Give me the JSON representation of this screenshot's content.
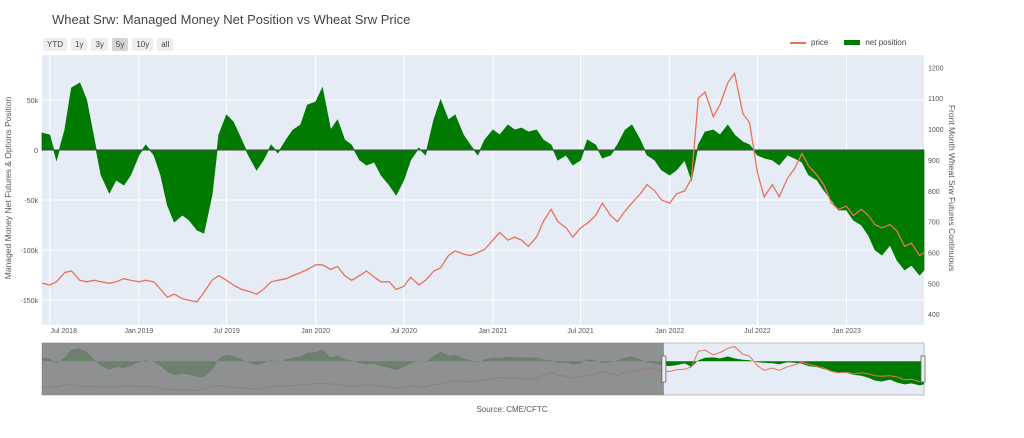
{
  "title": "Wheat Srw: Managed Money Net Position vs Wheat Srw Price",
  "range_buttons": [
    {
      "label": "YTD",
      "active": false
    },
    {
      "label": "1y",
      "active": false
    },
    {
      "label": "3y",
      "active": false
    },
    {
      "label": "5y",
      "active": true
    },
    {
      "label": "10y",
      "active": false
    },
    {
      "label": "all",
      "active": false
    }
  ],
  "legend": {
    "price": "price",
    "net": "net position"
  },
  "source": "Source: CME/CFTC",
  "colors": {
    "price": "#e8735a",
    "net": "#007a00",
    "plot_bg": "#e5ecf6",
    "grid": "#ffffff",
    "mask": "#808080"
  },
  "chart_data": {
    "type": "area",
    "title": "Wheat Srw: Managed Money Net Position vs Wheat Srw Price",
    "x_range": [
      "2018-06-15",
      "2023-06-10"
    ],
    "x_ticks": [
      "Jul 2018",
      "Jan 2019",
      "Jul 2019",
      "Jan 2020",
      "Jul 2020",
      "Jan 2021",
      "Jul 2021",
      "Jan 2022",
      "Jul 2022",
      "Jan 2023"
    ],
    "y_left": {
      "label": "Managed Money Net Futures & Options Position",
      "range": [
        -175000,
        95000
      ],
      "ticks": [
        50000,
        0,
        -50000,
        -100000,
        -150000
      ],
      "tick_labels": [
        "50k",
        "0",
        "-50k",
        "-100k",
        "-150k"
      ]
    },
    "y_right": {
      "label": "Front Month Wheat Srw Futures Continuous",
      "range": [
        365,
        1240
      ],
      "ticks": [
        400,
        500,
        600,
        700,
        800,
        900,
        1000,
        1100,
        1200
      ],
      "tick_labels": [
        "400",
        "500",
        "600",
        "700",
        "800",
        "900",
        "1000",
        "1100",
        "1200"
      ]
    },
    "grid": true,
    "legend_position": "top-right",
    "series": [
      {
        "name": "net position",
        "axis": "left",
        "points": [
          [
            "2018-06-15",
            17000
          ],
          [
            "2018-07-01",
            15000
          ],
          [
            "2018-07-15",
            -10000
          ],
          [
            "2018-08-01",
            20000
          ],
          [
            "2018-08-15",
            62000
          ],
          [
            "2018-09-01",
            67000
          ],
          [
            "2018-09-15",
            50000
          ],
          [
            "2018-10-01",
            10000
          ],
          [
            "2018-10-15",
            -25000
          ],
          [
            "2018-11-01",
            -43000
          ],
          [
            "2018-11-15",
            -30000
          ],
          [
            "2018-12-01",
            -35000
          ],
          [
            "2018-12-15",
            -25000
          ],
          [
            "2019-01-01",
            -5000
          ],
          [
            "2019-01-15",
            5000
          ],
          [
            "2019-02-01",
            -5000
          ],
          [
            "2019-02-15",
            -25000
          ],
          [
            "2019-03-01",
            -55000
          ],
          [
            "2019-03-15",
            -72000
          ],
          [
            "2019-04-01",
            -65000
          ],
          [
            "2019-04-15",
            -70000
          ],
          [
            "2019-05-01",
            -80000
          ],
          [
            "2019-05-15",
            -83000
          ],
          [
            "2019-06-01",
            -45000
          ],
          [
            "2019-06-15",
            15000
          ],
          [
            "2019-07-01",
            35000
          ],
          [
            "2019-07-15",
            28000
          ],
          [
            "2019-08-01",
            10000
          ],
          [
            "2019-08-15",
            -5000
          ],
          [
            "2019-09-01",
            -20000
          ],
          [
            "2019-09-15",
            -10000
          ],
          [
            "2019-10-01",
            5000
          ],
          [
            "2019-10-15",
            -3000
          ],
          [
            "2019-11-01",
            10000
          ],
          [
            "2019-11-15",
            20000
          ],
          [
            "2019-12-01",
            25000
          ],
          [
            "2019-12-15",
            45000
          ],
          [
            "2020-01-01",
            48000
          ],
          [
            "2020-01-15",
            62000
          ],
          [
            "2020-02-01",
            20000
          ],
          [
            "2020-02-15",
            30000
          ],
          [
            "2020-03-01",
            10000
          ],
          [
            "2020-03-15",
            5000
          ],
          [
            "2020-04-01",
            -10000
          ],
          [
            "2020-04-15",
            -15000
          ],
          [
            "2020-05-01",
            -12000
          ],
          [
            "2020-05-15",
            -25000
          ],
          [
            "2020-06-01",
            -35000
          ],
          [
            "2020-06-15",
            -45000
          ],
          [
            "2020-07-01",
            -30000
          ],
          [
            "2020-07-15",
            -10000
          ],
          [
            "2020-08-01",
            2000
          ],
          [
            "2020-08-15",
            -5000
          ],
          [
            "2020-09-01",
            30000
          ],
          [
            "2020-09-15",
            50000
          ],
          [
            "2020-10-01",
            30000
          ],
          [
            "2020-10-15",
            35000
          ],
          [
            "2020-11-01",
            15000
          ],
          [
            "2020-11-15",
            5000
          ],
          [
            "2020-12-01",
            -5000
          ],
          [
            "2020-12-15",
            10000
          ],
          [
            "2021-01-01",
            20000
          ],
          [
            "2021-01-15",
            15000
          ],
          [
            "2021-02-01",
            25000
          ],
          [
            "2021-02-15",
            20000
          ],
          [
            "2021-03-01",
            22000
          ],
          [
            "2021-03-15",
            18000
          ],
          [
            "2021-04-01",
            20000
          ],
          [
            "2021-04-15",
            10000
          ],
          [
            "2021-05-01",
            5000
          ],
          [
            "2021-05-15",
            -10000
          ],
          [
            "2021-06-01",
            -5000
          ],
          [
            "2021-06-15",
            -15000
          ],
          [
            "2021-07-01",
            -10000
          ],
          [
            "2021-07-15",
            10000
          ],
          [
            "2021-08-01",
            5000
          ],
          [
            "2021-08-15",
            -8000
          ],
          [
            "2021-09-01",
            -5000
          ],
          [
            "2021-09-15",
            5000
          ],
          [
            "2021-10-01",
            20000
          ],
          [
            "2021-10-15",
            25000
          ],
          [
            "2021-11-01",
            10000
          ],
          [
            "2021-11-15",
            -5000
          ],
          [
            "2021-12-01",
            -10000
          ],
          [
            "2021-12-15",
            -20000
          ],
          [
            "2022-01-01",
            -25000
          ],
          [
            "2022-01-15",
            -20000
          ],
          [
            "2022-02-01",
            -10000
          ],
          [
            "2022-02-15",
            -30000
          ],
          [
            "2022-03-01",
            5000
          ],
          [
            "2022-03-15",
            18000
          ],
          [
            "2022-04-01",
            20000
          ],
          [
            "2022-04-15",
            15000
          ],
          [
            "2022-05-01",
            25000
          ],
          [
            "2022-05-15",
            15000
          ],
          [
            "2022-06-01",
            8000
          ],
          [
            "2022-06-15",
            5000
          ],
          [
            "2022-07-01",
            -5000
          ],
          [
            "2022-07-15",
            -8000
          ],
          [
            "2022-08-01",
            -10000
          ],
          [
            "2022-08-15",
            -15000
          ],
          [
            "2022-09-01",
            -5000
          ],
          [
            "2022-09-15",
            -8000
          ],
          [
            "2022-10-01",
            -12000
          ],
          [
            "2022-10-15",
            -25000
          ],
          [
            "2022-11-01",
            -30000
          ],
          [
            "2022-11-15",
            -40000
          ],
          [
            "2022-12-01",
            -50000
          ],
          [
            "2022-12-15",
            -60000
          ],
          [
            "2023-01-01",
            -60000
          ],
          [
            "2023-01-15",
            -70000
          ],
          [
            "2023-02-01",
            -75000
          ],
          [
            "2023-02-15",
            -85000
          ],
          [
            "2023-03-01",
            -100000
          ],
          [
            "2023-03-15",
            -105000
          ],
          [
            "2023-04-01",
            -95000
          ],
          [
            "2023-04-15",
            -110000
          ],
          [
            "2023-05-01",
            -120000
          ],
          [
            "2023-05-15",
            -115000
          ],
          [
            "2023-06-01",
            -125000
          ],
          [
            "2023-06-10",
            -120000
          ]
        ]
      },
      {
        "name": "price",
        "axis": "right",
        "points": [
          [
            "2018-06-15",
            500
          ],
          [
            "2018-07-01",
            495
          ],
          [
            "2018-07-15",
            505
          ],
          [
            "2018-08-01",
            535
          ],
          [
            "2018-08-15",
            540
          ],
          [
            "2018-09-01",
            510
          ],
          [
            "2018-09-15",
            505
          ],
          [
            "2018-10-01",
            510
          ],
          [
            "2018-10-15",
            505
          ],
          [
            "2018-11-01",
            500
          ],
          [
            "2018-11-15",
            505
          ],
          [
            "2018-12-01",
            515
          ],
          [
            "2018-12-15",
            510
          ],
          [
            "2019-01-01",
            505
          ],
          [
            "2019-01-15",
            510
          ],
          [
            "2019-02-01",
            505
          ],
          [
            "2019-02-15",
            480
          ],
          [
            "2019-03-01",
            455
          ],
          [
            "2019-03-15",
            465
          ],
          [
            "2019-04-01",
            450
          ],
          [
            "2019-04-15",
            445
          ],
          [
            "2019-05-01",
            440
          ],
          [
            "2019-05-15",
            470
          ],
          [
            "2019-06-01",
            510
          ],
          [
            "2019-06-15",
            525
          ],
          [
            "2019-07-01",
            510
          ],
          [
            "2019-07-15",
            495
          ],
          [
            "2019-08-01",
            480
          ],
          [
            "2019-08-15",
            475
          ],
          [
            "2019-09-01",
            465
          ],
          [
            "2019-09-15",
            480
          ],
          [
            "2019-10-01",
            505
          ],
          [
            "2019-10-15",
            510
          ],
          [
            "2019-11-01",
            515
          ],
          [
            "2019-11-15",
            525
          ],
          [
            "2019-12-01",
            535
          ],
          [
            "2019-12-15",
            545
          ],
          [
            "2020-01-01",
            560
          ],
          [
            "2020-01-15",
            560
          ],
          [
            "2020-02-01",
            545
          ],
          [
            "2020-02-15",
            555
          ],
          [
            "2020-03-01",
            525
          ],
          [
            "2020-03-15",
            510
          ],
          [
            "2020-04-01",
            525
          ],
          [
            "2020-04-15",
            540
          ],
          [
            "2020-05-01",
            520
          ],
          [
            "2020-05-15",
            505
          ],
          [
            "2020-06-01",
            505
          ],
          [
            "2020-06-15",
            480
          ],
          [
            "2020-07-01",
            490
          ],
          [
            "2020-07-15",
            520
          ],
          [
            "2020-08-01",
            495
          ],
          [
            "2020-08-15",
            510
          ],
          [
            "2020-09-01",
            540
          ],
          [
            "2020-09-15",
            550
          ],
          [
            "2020-10-01",
            590
          ],
          [
            "2020-10-15",
            605
          ],
          [
            "2020-11-01",
            595
          ],
          [
            "2020-11-15",
            590
          ],
          [
            "2020-12-01",
            600
          ],
          [
            "2020-12-15",
            610
          ],
          [
            "2021-01-01",
            640
          ],
          [
            "2021-01-15",
            665
          ],
          [
            "2021-02-01",
            640
          ],
          [
            "2021-02-15",
            650
          ],
          [
            "2021-03-01",
            640
          ],
          [
            "2021-03-15",
            620
          ],
          [
            "2021-04-01",
            650
          ],
          [
            "2021-04-15",
            700
          ],
          [
            "2021-05-01",
            740
          ],
          [
            "2021-05-15",
            700
          ],
          [
            "2021-06-01",
            680
          ],
          [
            "2021-06-15",
            650
          ],
          [
            "2021-07-01",
            680
          ],
          [
            "2021-07-15",
            695
          ],
          [
            "2021-08-01",
            720
          ],
          [
            "2021-08-15",
            760
          ],
          [
            "2021-09-01",
            720
          ],
          [
            "2021-09-15",
            700
          ],
          [
            "2021-10-01",
            735
          ],
          [
            "2021-10-15",
            760
          ],
          [
            "2021-11-01",
            790
          ],
          [
            "2021-11-15",
            820
          ],
          [
            "2021-12-01",
            800
          ],
          [
            "2021-12-15",
            770
          ],
          [
            "2022-01-01",
            760
          ],
          [
            "2022-01-15",
            790
          ],
          [
            "2022-02-01",
            800
          ],
          [
            "2022-02-15",
            840
          ],
          [
            "2022-03-01",
            1100
          ],
          [
            "2022-03-15",
            1120
          ],
          [
            "2022-04-01",
            1040
          ],
          [
            "2022-04-15",
            1080
          ],
          [
            "2022-05-01",
            1150
          ],
          [
            "2022-05-15",
            1180
          ],
          [
            "2022-06-01",
            1050
          ],
          [
            "2022-06-15",
            1020
          ],
          [
            "2022-07-01",
            860
          ],
          [
            "2022-07-15",
            780
          ],
          [
            "2022-08-01",
            820
          ],
          [
            "2022-08-15",
            780
          ],
          [
            "2022-09-01",
            840
          ],
          [
            "2022-09-15",
            870
          ],
          [
            "2022-10-01",
            920
          ],
          [
            "2022-10-15",
            880
          ],
          [
            "2022-11-01",
            850
          ],
          [
            "2022-11-15",
            820
          ],
          [
            "2022-12-01",
            760
          ],
          [
            "2022-12-15",
            740
          ],
          [
            "2023-01-01",
            750
          ],
          [
            "2023-01-15",
            720
          ],
          [
            "2023-02-01",
            740
          ],
          [
            "2023-02-15",
            720
          ],
          [
            "2023-03-01",
            690
          ],
          [
            "2023-03-15",
            680
          ],
          [
            "2023-04-01",
            690
          ],
          [
            "2023-04-15",
            670
          ],
          [
            "2023-05-01",
            620
          ],
          [
            "2023-05-15",
            630
          ],
          [
            "2023-06-01",
            590
          ],
          [
            "2023-06-10",
            600
          ]
        ]
      }
    ],
    "range_slider": {
      "selected": [
        "2021-12-20",
        "2023-06-10"
      ]
    }
  }
}
